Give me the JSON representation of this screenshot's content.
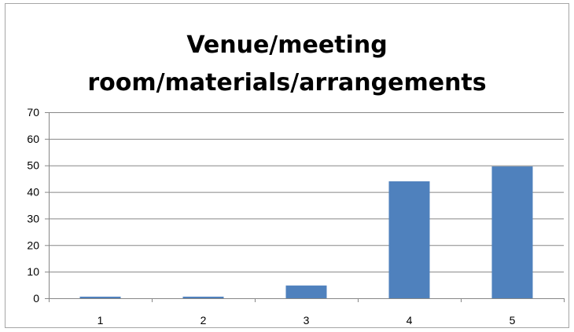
{
  "chart_data": {
    "type": "bar",
    "title_lines": [
      "Venue/meeting",
      "room/materials/arrangements"
    ],
    "xlabel": "",
    "ylabel": "",
    "categories": [
      "1",
      "2",
      "3",
      "4",
      "5"
    ],
    "values": [
      0.6,
      0.6,
      4.8,
      44,
      49.6
    ],
    "ylim": [
      0,
      70
    ],
    "yticks": [
      0,
      10,
      20,
      30,
      40,
      50,
      60,
      70
    ],
    "grid": true,
    "legend": "none",
    "bar_color": "#4f81bd",
    "grid_color": "#878787",
    "axis_color": "#878787"
  }
}
